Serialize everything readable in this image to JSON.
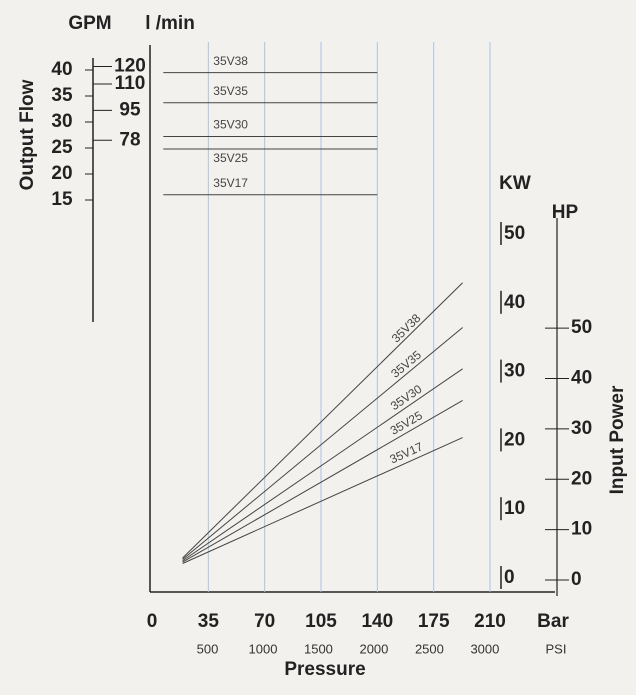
{
  "chart_data": {
    "type": "line",
    "x_label": "Pressure",
    "x_unit": "Bar",
    "x2_unit": "PSI",
    "xlim": [
      0,
      210
    ],
    "xticks": [
      0,
      35,
      70,
      105,
      140,
      175,
      210
    ],
    "psi_ticks": [
      500,
      1000,
      1500,
      2000,
      2500,
      3000
    ],
    "grid": true,
    "grid_color": "#a9c4e4",
    "flow_label": "Output Flow",
    "gpm_unit": "GPM",
    "lpm_unit": "l /min",
    "gpm_lim": [
      15,
      40
    ],
    "gpm_ticks": [
      15,
      20,
      25,
      30,
      35,
      40
    ],
    "lpm_lim": [
      44,
      118
    ],
    "lpm_ticks": [
      78,
      95,
      110,
      120
    ],
    "power_label": "Input Power",
    "kw_unit": "KW",
    "hp_unit": "HP",
    "kw_lim": [
      0,
      50
    ],
    "kw_ticks": [
      0,
      10,
      20,
      30,
      40,
      50
    ],
    "hp_lim": [
      0,
      68.3
    ],
    "hp_ticks": [
      0,
      10,
      20,
      30,
      40,
      50
    ],
    "line_color": "#444444",
    "flow_series": [
      {
        "name": "35V38",
        "x": [
          7,
          140
        ],
        "values": [
          39.5,
          39.5
        ]
      },
      {
        "name": "35V35",
        "x": [
          7,
          140
        ],
        "values": [
          33.7,
          33.7
        ]
      },
      {
        "name": "35V30",
        "x": [
          7,
          140
        ],
        "values": [
          27.2,
          27.2
        ]
      },
      {
        "name": "35V25",
        "x": [
          7,
          140
        ],
        "values": [
          24.8,
          24.8
        ]
      },
      {
        "name": "35V17",
        "x": [
          7,
          140
        ],
        "values": [
          16,
          16
        ]
      }
    ],
    "power_series": [
      {
        "name": "35V38",
        "x": [
          19,
          193
        ],
        "values": [
          3.2,
          43.2
        ]
      },
      {
        "name": "35V35",
        "x": [
          19,
          193
        ],
        "values": [
          3.0,
          36.7
        ]
      },
      {
        "name": "35V30",
        "x": [
          19,
          193
        ],
        "values": [
          2.8,
          30.7
        ]
      },
      {
        "name": "35V25",
        "x": [
          19,
          193
        ],
        "values": [
          2.6,
          26.1
        ]
      },
      {
        "name": "35V17",
        "x": [
          19,
          193
        ],
        "values": [
          2.4,
          20.7
        ]
      }
    ]
  }
}
